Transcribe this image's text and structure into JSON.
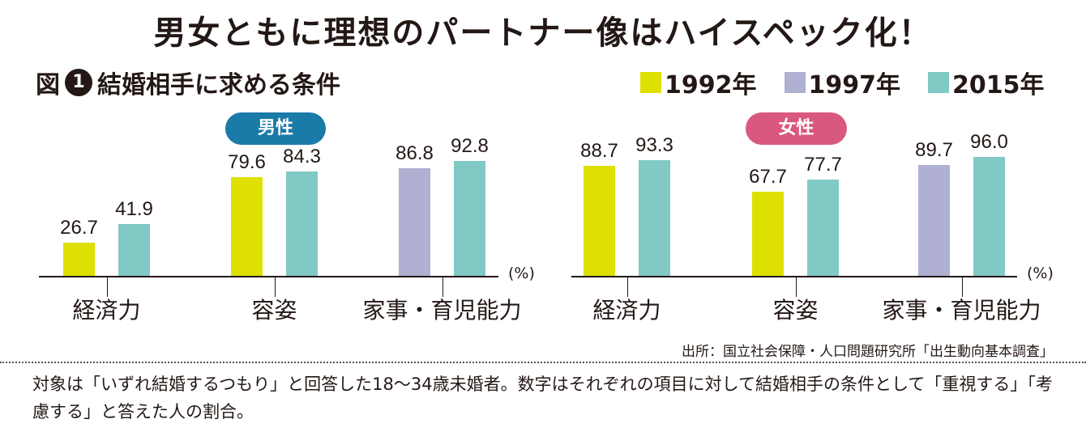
{
  "title": "男女ともに理想のパートナー像はハイスペック化！",
  "subtitle": {
    "prefix": "図",
    "number": "1",
    "text": "結婚相手に求める条件"
  },
  "legend": [
    {
      "label": "1992年",
      "color": "#dde000"
    },
    {
      "label": "1997年",
      "color": "#afb0d2"
    },
    {
      "label": "2015年",
      "color": "#80c9c5"
    }
  ],
  "chart_data": [
    {
      "type": "bar",
      "title": "男性",
      "title_color": "#1a7aa8",
      "categories": [
        "経済力",
        "容姿",
        "家事・育児能力"
      ],
      "unit": "(%)",
      "series": [
        {
          "name": "1992年",
          "values": [
            26.7,
            79.6,
            null
          ]
        },
        {
          "name": "1997年",
          "values": [
            null,
            null,
            86.8
          ]
        },
        {
          "name": "2015年",
          "values": [
            41.9,
            84.3,
            92.8
          ]
        }
      ],
      "ylim": [
        0,
        100
      ]
    },
    {
      "type": "bar",
      "title": "女性",
      "title_color": "#d9587e",
      "categories": [
        "経済力",
        "容姿",
        "家事・育児能力"
      ],
      "unit": "(%)",
      "series": [
        {
          "name": "1992年",
          "values": [
            88.7,
            67.7,
            null
          ]
        },
        {
          "name": "1997年",
          "values": [
            null,
            null,
            89.7
          ]
        },
        {
          "name": "2015年",
          "values": [
            93.3,
            77.7,
            96.0
          ]
        }
      ],
      "ylim": [
        0,
        100
      ]
    }
  ],
  "source": "出所：国立社会保障・人口問題研究所「出生動向基本調査」",
  "note": "対象は「いずれ結婚するつもり」と回答した18〜34歳未婚者。数字はそれぞれの項目に対して結婚相手の条件として「重視する」「考慮する」と答えた人の割合。"
}
